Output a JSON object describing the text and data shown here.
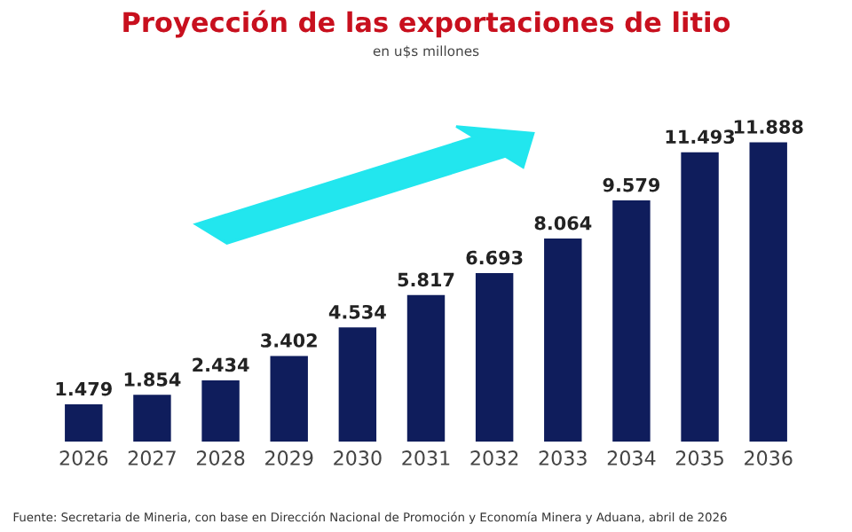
{
  "chart_data": {
    "type": "bar",
    "title": "Proyección de las exportaciones de litio",
    "subtitle": "en u$s millones",
    "categories": [
      "2026",
      "2027",
      "2028",
      "2029",
      "2030",
      "2031",
      "2032",
      "2033",
      "2034",
      "2035",
      "2036"
    ],
    "values": [
      1479,
      1854,
      2434,
      3402,
      4534,
      5817,
      6693,
      8064,
      9579,
      11493,
      11888
    ],
    "value_labels": [
      "1.479",
      "1.854",
      "2.434",
      "3.402",
      "4.534",
      "5.817",
      "6.693",
      "8.064",
      "9.579",
      "11.493",
      "11.888"
    ],
    "color": "#0f1d5c",
    "grid": false,
    "legend": false,
    "annotations": [
      "Fuente: Secretaria de Mineria, con base en Dirección Nacional de Promoción y Economía Minera y Aduana, abril de 2026"
    ]
  }
}
